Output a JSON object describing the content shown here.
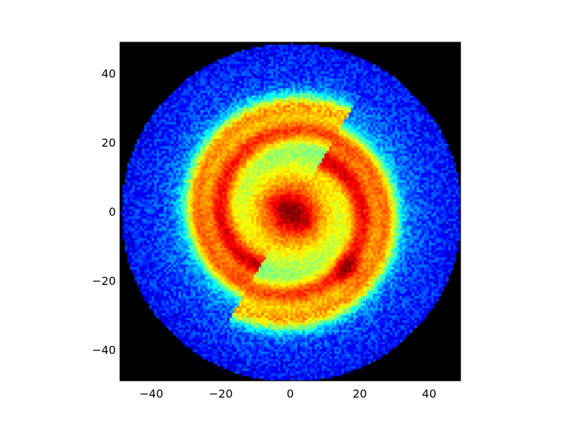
{
  "chart_data": {
    "type": "heatmap",
    "title": "",
    "xlabel": "",
    "ylabel": "",
    "xlim": [
      -49,
      49
    ],
    "ylim": [
      -49,
      49
    ],
    "grid": false,
    "legend": "none",
    "background_color": "#000000",
    "colormap": "jet",
    "x_ticks": [
      {
        "value": -40,
        "label": "−40"
      },
      {
        "value": -20,
        "label": "−20"
      },
      {
        "value": 0,
        "label": "0"
      },
      {
        "value": 20,
        "label": "20"
      },
      {
        "value": 40,
        "label": "40"
      }
    ],
    "y_ticks": [
      {
        "value": 40,
        "label": "40"
      },
      {
        "value": 20,
        "label": "20"
      },
      {
        "value": 0,
        "label": "0"
      },
      {
        "value": -20,
        "label": "−20"
      },
      {
        "value": -40,
        "label": "−40"
      }
    ],
    "disk_radius": 49,
    "components": {
      "bar": {
        "center": [
          0,
          0
        ],
        "semi_major": 4,
        "semi_minor": 2,
        "angle_deg": -35,
        "peak": 1.0
      },
      "bulge": {
        "center": [
          0,
          0
        ],
        "radius": 8,
        "level": 0.62
      },
      "inner_disk": {
        "center": [
          0,
          0
        ],
        "radius": 24,
        "level": 0.42
      },
      "outer_disk": {
        "radius": 48,
        "level": 0.2
      },
      "spiral_arms": [
        {
          "name": "",
          "start_angle_deg": 60,
          "radius_start": 24,
          "radius_end": 14,
          "level": 0.45
        },
        {
          "name": "",
          "start_angle_deg": 240,
          "radius_start": 24,
          "radius_end": 14,
          "level": 0.45
        }
      ],
      "knot": {
        "center": [
          16,
          -16
        ],
        "radius": 4,
        "level": 0.55
      }
    }
  }
}
